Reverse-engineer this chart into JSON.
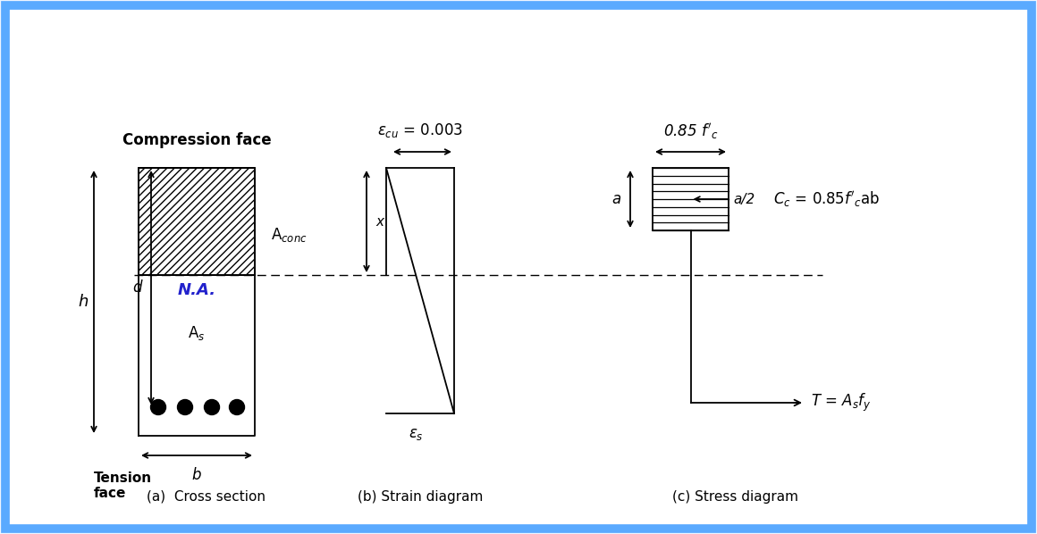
{
  "bg_color": "#eef5ff",
  "border_color": "#5aaaff",
  "diagram_bg": "#ffffff",
  "line_color": "#000000",
  "na_color": "#2222cc",
  "labels": {
    "compression_face": "Compression face",
    "tension_face": "Tension\nface",
    "h": "h",
    "d": "d",
    "b": "b",
    "NA": "N.A.",
    "A_conc": "A$_{conc}$",
    "A_s": "A$_s$",
    "epsilon_cu": "$\\epsilon_{cu}$ = 0.003",
    "epsilon_s": "$\\epsilon_s$",
    "x": "x",
    "a": "a",
    "a2": "a/2",
    "stress_top": "0.85 $f'_c$",
    "Cc": "$C_c$ = 0.85$f'_c$ab",
    "T": "$T$ = $A_s$$f_y$",
    "caption_a": "(a)  Cross section",
    "caption_b": "(b) Strain diagram",
    "caption_c": "(c) Stress diagram"
  }
}
